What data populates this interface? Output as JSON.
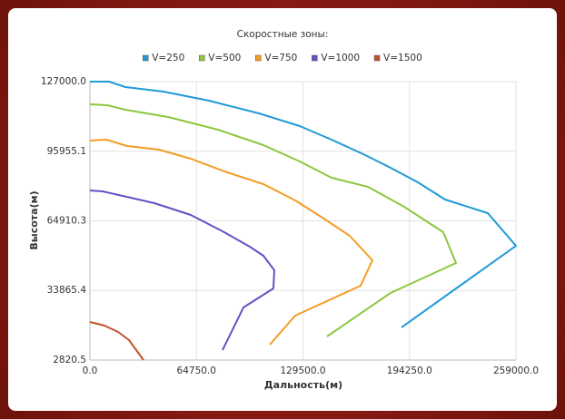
{
  "chart_data": {
    "type": "line",
    "title": "Скоростные зоны:",
    "x_label": "Дальность(м)",
    "y_label": "Высота(м)",
    "xlim": [
      0,
      259000
    ],
    "ylim": [
      2820.5,
      127000
    ],
    "xticks": [
      {
        "value": 0,
        "label": "0.0"
      },
      {
        "value": 64750,
        "label": "64750.0"
      },
      {
        "value": 129500,
        "label": "129500.0"
      },
      {
        "value": 194250,
        "label": "194250.0"
      },
      {
        "value": 259000,
        "label": "259000.0"
      }
    ],
    "yticks": [
      {
        "value": 2820.5,
        "label": "2820.5"
      },
      {
        "value": 33865.4,
        "label": "33865.4"
      },
      {
        "value": 64910.3,
        "label": "64910.3"
      },
      {
        "value": 95955.1,
        "label": "95955.1"
      },
      {
        "value": 127000,
        "label": "127000.0"
      }
    ],
    "grid": true,
    "legend": "top",
    "series": [
      {
        "name": "V=250",
        "color": "#1f9ad6",
        "x": [
          0,
          11596,
          21536,
          44728,
          72338,
          102709,
          127558,
          146885,
          166212,
          182778,
          199344,
          215910,
          241864,
          259000,
          189405
        ],
        "values": [
          127000,
          127000,
          124573,
          122550,
          118506,
          112843,
          107180,
          101112,
          94640,
          88573,
          82100,
          74415,
          68348,
          53785,
          17380
        ]
      },
      {
        "name": "V=500",
        "color": "#8dc63f",
        "x": [
          0,
          10492,
          21536,
          47489,
          77860,
          105470,
          127558,
          146885,
          168973,
          191061,
          214806,
          222537,
          182778,
          144124
        ],
        "values": [
          116888,
          116483,
          114461,
          111225,
          105562,
          98685,
          91404,
          84123,
          80078,
          71179,
          59853,
          46100,
          32752,
          13336
        ]
      },
      {
        "name": "V=750",
        "color": "#f39c24",
        "x": [
          0,
          9940,
          22640,
          41967,
          61294,
          83382,
          105470,
          124797,
          141363,
          157929,
          171734,
          164556,
          124797,
          109336
        ],
        "values": [
          100708,
          101112,
          98281,
          96663,
          92618,
          86550,
          81292,
          74010,
          66325,
          58235,
          47314,
          35988,
          22639,
          9695
        ]
      },
      {
        "name": "V=1000",
        "color": "#6a4fc4",
        "x": [
          0,
          7731,
          19879,
          39206,
          61294,
          80621,
          97187,
          105470,
          112097,
          111544,
          93322,
          80621
        ],
        "values": [
          78460,
          78055,
          76033,
          72797,
          67542,
          60258,
          53381,
          49336,
          42864,
          34774,
          26280,
          7268
        ]
      },
      {
        "name": "V=1500",
        "color": "#c0512b",
        "x": [
          0,
          8835,
          17118,
          23745,
          28162,
          32580
        ],
        "values": [
          19808,
          18190,
          15358,
          11718,
          7268,
          2820
        ]
      }
    ]
  }
}
